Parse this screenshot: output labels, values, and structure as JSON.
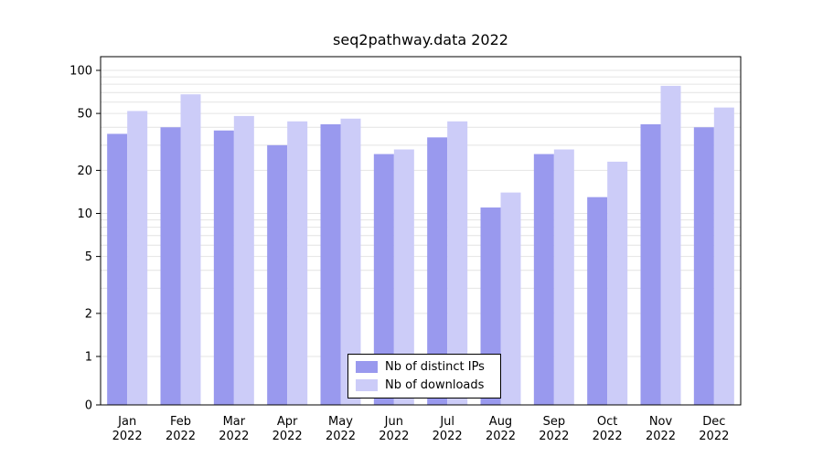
{
  "chart_data": {
    "type": "bar",
    "title": "seq2pathway.data 2022",
    "categories": [
      "Jan",
      "Feb",
      "Mar",
      "Apr",
      "May",
      "Jun",
      "Jul",
      "Aug",
      "Sep",
      "Oct",
      "Nov",
      "Dec"
    ],
    "year": "2022",
    "series": [
      {
        "name": "Nb of distinct IPs",
        "color": "#9999ee",
        "values": [
          36,
          40,
          38,
          30,
          42,
          26,
          34,
          11,
          26,
          13,
          42,
          40
        ]
      },
      {
        "name": "Nb of downloads",
        "color": "#ccccf8",
        "values": [
          52,
          68,
          48,
          44,
          46,
          28,
          44,
          14,
          28,
          23,
          78,
          55
        ]
      }
    ],
    "yscale": "log",
    "y_ticks": [
      0,
      1,
      2,
      5,
      10,
      20,
      50,
      100
    ],
    "ylim": [
      0,
      110
    ],
    "xlabel": "",
    "ylabel": "",
    "grid": true,
    "legend_position": "bottom-center",
    "colors": {
      "grid": "#e4e4e4",
      "axis": "#000000",
      "text": "#000000",
      "background": "#ffffff"
    }
  }
}
